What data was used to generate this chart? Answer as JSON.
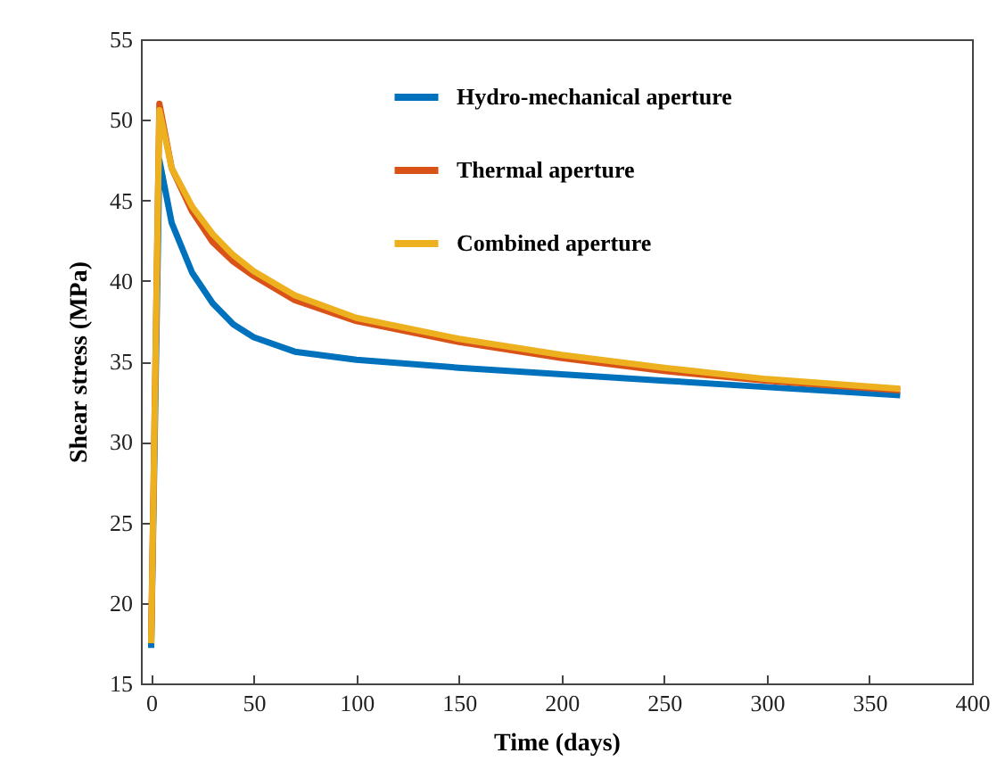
{
  "chart_data": {
    "type": "line",
    "xlabel": "Time (days)",
    "ylabel": "Shear stress (MPa)",
    "xlim": [
      -5,
      400
    ],
    "ylim": [
      15,
      55
    ],
    "xticks": [
      0,
      50,
      100,
      150,
      200,
      250,
      300,
      350,
      400
    ],
    "yticks": [
      15,
      20,
      25,
      30,
      35,
      40,
      45,
      50,
      55
    ],
    "grid": false,
    "legend": "top right",
    "marker": "none",
    "line_style": "solid",
    "x": [
      0,
      4,
      10,
      20,
      30,
      40,
      50,
      70,
      100,
      150,
      200,
      250,
      300,
      365
    ],
    "series": [
      {
        "name": "Hydro-mechanical aperture",
        "color": "#0072bd",
        "values": [
          17.2,
          47.5,
          43.6,
          40.5,
          38.6,
          37.3,
          36.5,
          35.6,
          35.1,
          34.6,
          34.2,
          33.8,
          33.4,
          32.9
        ]
      },
      {
        "name": "Thermal aperture",
        "color": "#d95319",
        "values": [
          17.5,
          51.0,
          47.0,
          44.3,
          42.4,
          41.2,
          40.3,
          38.8,
          37.5,
          36.2,
          35.2,
          34.4,
          33.8,
          33.2
        ]
      },
      {
        "name": "Combined aperture",
        "color": "#edb120",
        "values": [
          17.5,
          50.6,
          47.0,
          44.6,
          42.9,
          41.6,
          40.6,
          39.1,
          37.7,
          36.4,
          35.4,
          34.6,
          33.9,
          33.3
        ]
      }
    ]
  }
}
